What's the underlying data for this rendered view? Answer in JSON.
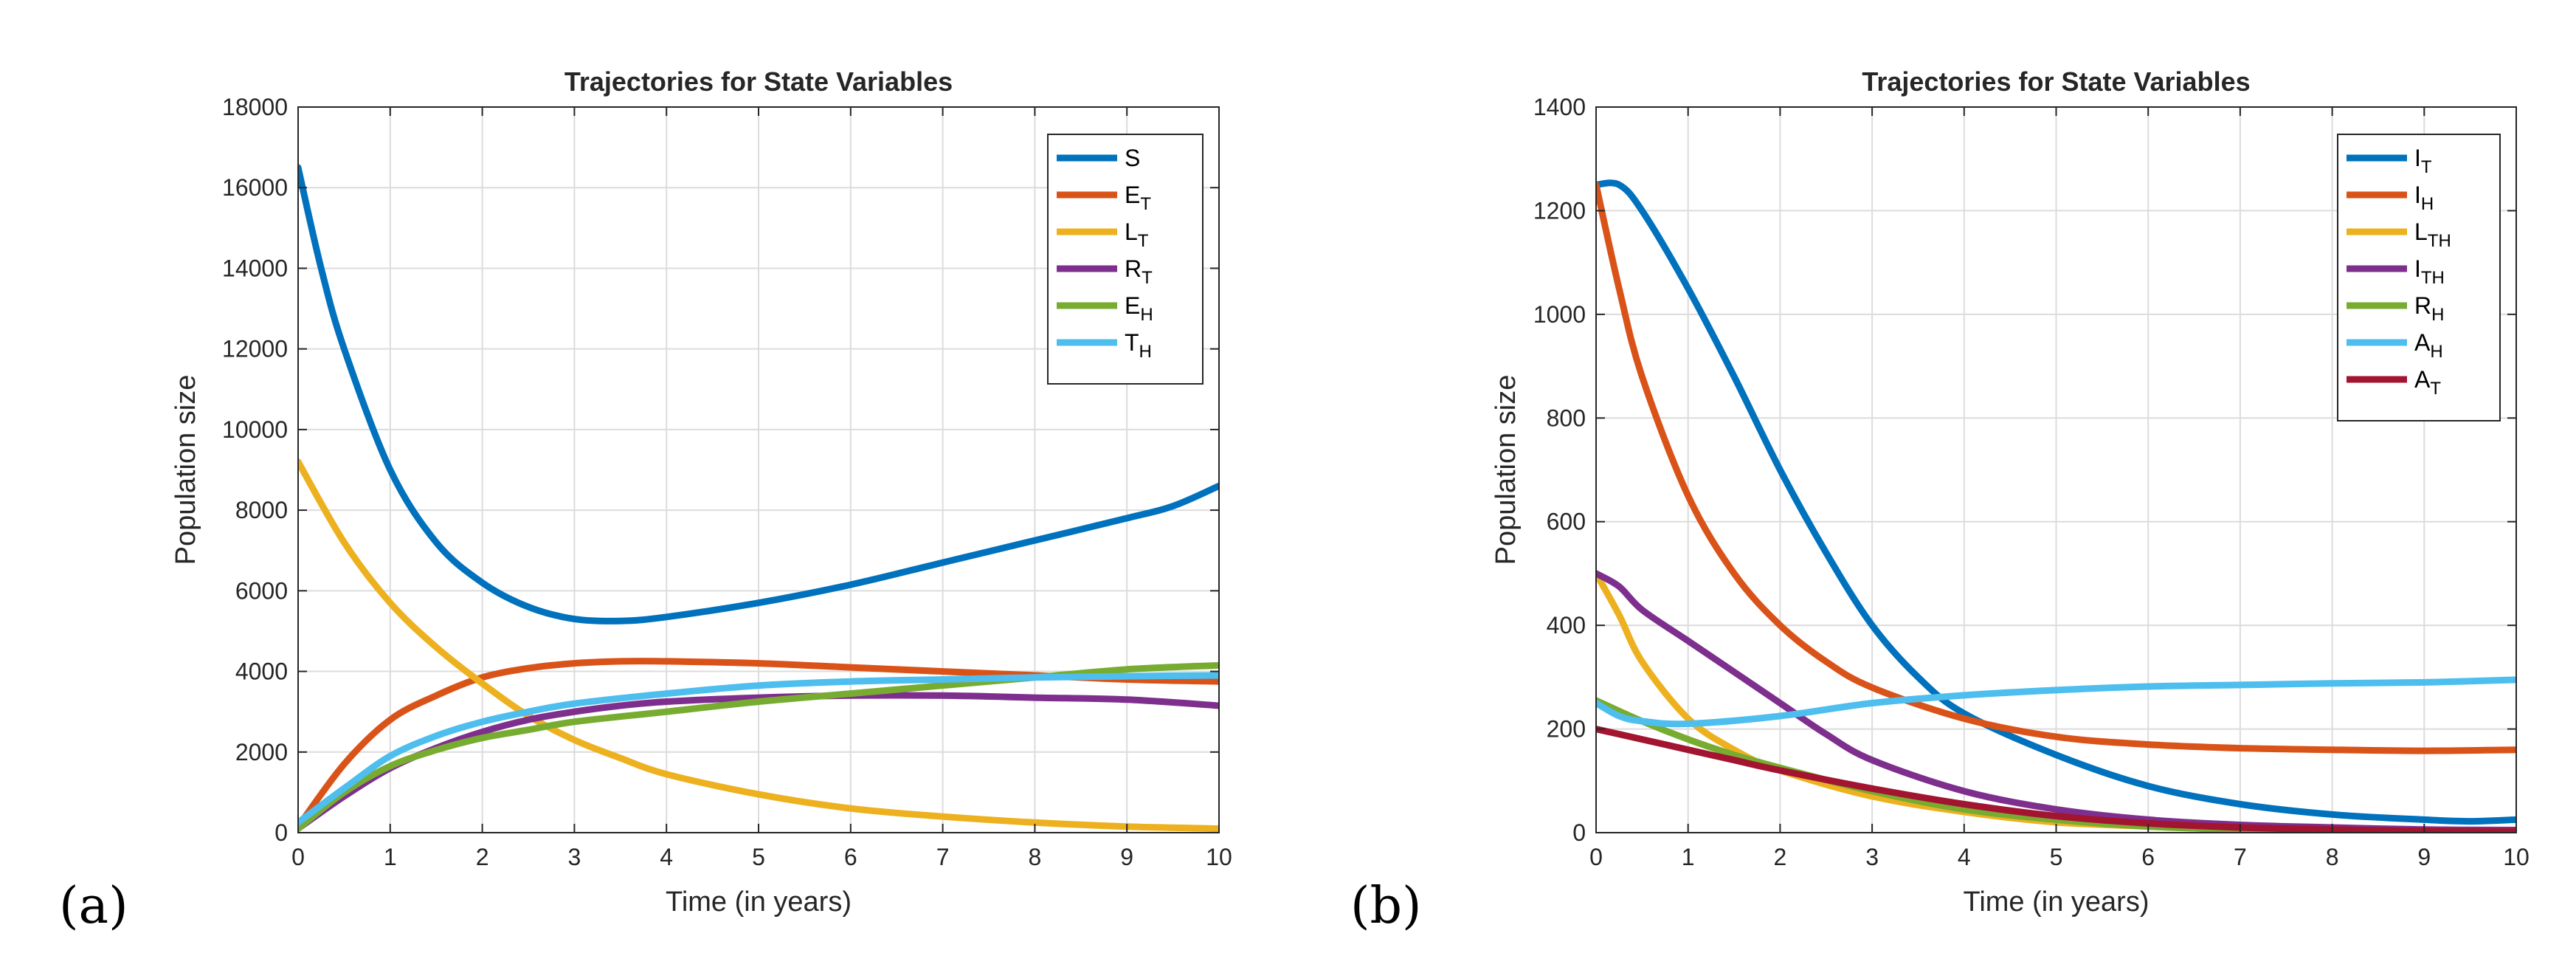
{
  "chart_data": [
    {
      "type": "line",
      "panel_label": "(a)",
      "title": "Trajectories for State Variables",
      "xlabel": "Time (in years)",
      "ylabel": "Population size",
      "xlim": [
        0,
        10
      ],
      "ylim": [
        0,
        18000
      ],
      "xticks": [
        0,
        1,
        2,
        3,
        4,
        5,
        6,
        7,
        8,
        9,
        10
      ],
      "yticks": [
        0,
        2000,
        4000,
        6000,
        8000,
        10000,
        12000,
        14000,
        16000,
        18000
      ],
      "grid": true,
      "legend_position": "top-right",
      "series": [
        {
          "name": "S",
          "label_main": "S",
          "label_sub": "",
          "color": "#0072BD",
          "x": [
            0,
            0.25,
            0.5,
            1,
            1.5,
            2,
            2.5,
            3,
            3.5,
            4,
            5,
            6,
            7,
            8,
            9,
            9.5,
            10
          ],
          "y": [
            16500,
            14000,
            12000,
            9000,
            7200,
            6200,
            5600,
            5300,
            5250,
            5350,
            5700,
            6150,
            6700,
            7250,
            7800,
            8100,
            8600
          ]
        },
        {
          "name": "E_T",
          "label_main": "E",
          "label_sub": "T",
          "color": "#D95319",
          "x": [
            0,
            0.5,
            1,
            1.5,
            2,
            2.5,
            3,
            3.5,
            4,
            5,
            6,
            7,
            8,
            9,
            10
          ],
          "y": [
            150,
            1700,
            2800,
            3400,
            3850,
            4080,
            4200,
            4250,
            4250,
            4200,
            4100,
            4000,
            3900,
            3800,
            3750
          ]
        },
        {
          "name": "L_T",
          "label_main": "L",
          "label_sub": "T",
          "color": "#EDB120",
          "x": [
            0,
            0.5,
            1,
            1.5,
            2,
            2.5,
            3,
            3.5,
            4,
            5,
            6,
            7,
            8,
            9,
            10
          ],
          "y": [
            9200,
            7200,
            5700,
            4600,
            3700,
            2900,
            2300,
            1850,
            1450,
            950,
            600,
            400,
            250,
            150,
            100
          ]
        },
        {
          "name": "R_T",
          "label_main": "R",
          "label_sub": "T",
          "color": "#7E2F8E",
          "x": [
            0,
            0.5,
            1,
            1.5,
            2,
            2.5,
            3,
            3.5,
            4,
            5,
            6,
            7,
            8,
            9,
            10
          ],
          "y": [
            100,
            900,
            1600,
            2100,
            2500,
            2800,
            3000,
            3150,
            3250,
            3350,
            3400,
            3400,
            3350,
            3300,
            3150
          ]
        },
        {
          "name": "E_H",
          "label_main": "E",
          "label_sub": "H",
          "color": "#77AC30",
          "x": [
            0,
            0.5,
            1,
            1.5,
            2,
            2.5,
            3,
            4,
            5,
            6,
            7,
            8,
            9,
            10
          ],
          "y": [
            100,
            1000,
            1650,
            2050,
            2350,
            2550,
            2750,
            3000,
            3250,
            3450,
            3650,
            3850,
            4050,
            4150
          ]
        },
        {
          "name": "T_H",
          "label_main": "T",
          "label_sub": "H",
          "color": "#4DBEEE",
          "x": [
            0,
            0.5,
            1,
            1.5,
            2,
            2.5,
            3,
            4,
            5,
            6,
            7,
            8,
            9,
            10
          ],
          "y": [
            250,
            1100,
            1900,
            2400,
            2750,
            3000,
            3200,
            3450,
            3650,
            3750,
            3800,
            3850,
            3880,
            3900
          ]
        }
      ]
    },
    {
      "type": "line",
      "panel_label": "(b)",
      "title": "Trajectories for State Variables",
      "xlabel": "Time (in years)",
      "ylabel": "Population size",
      "xlim": [
        0,
        10
      ],
      "ylim": [
        0,
        1400
      ],
      "xticks": [
        0,
        1,
        2,
        3,
        4,
        5,
        6,
        7,
        8,
        9,
        10
      ],
      "yticks": [
        0,
        200,
        400,
        600,
        800,
        1000,
        1200,
        1400
      ],
      "grid": true,
      "legend_position": "top-right",
      "series": [
        {
          "name": "I_T",
          "label_main": "I",
          "label_sub": "T",
          "color": "#0072BD",
          "x": [
            0,
            0.25,
            0.5,
            1,
            1.5,
            2,
            2.5,
            3,
            3.5,
            4,
            5,
            6,
            7,
            8,
            9,
            9.5,
            10
          ],
          "y": [
            1250,
            1250,
            1200,
            1050,
            880,
            700,
            540,
            400,
            300,
            230,
            150,
            90,
            55,
            35,
            25,
            22,
            25
          ]
        },
        {
          "name": "I_H",
          "label_main": "I",
          "label_sub": "H",
          "color": "#D95319",
          "x": [
            0,
            0.25,
            0.5,
            1,
            1.5,
            2,
            2.5,
            3,
            4,
            5,
            6,
            7,
            8,
            9,
            10
          ],
          "y": [
            1250,
            1050,
            880,
            650,
            500,
            400,
            330,
            280,
            220,
            185,
            170,
            163,
            160,
            158,
            160
          ]
        },
        {
          "name": "L_TH",
          "label_main": "L",
          "label_sub": "TH",
          "color": "#EDB120",
          "x": [
            0,
            0.25,
            0.5,
            1,
            1.5,
            2,
            3,
            4,
            5,
            6,
            7,
            8,
            9,
            10
          ],
          "y": [
            500,
            420,
            330,
            220,
            160,
            120,
            70,
            40,
            20,
            12,
            6,
            3,
            2,
            1
          ]
        },
        {
          "name": "I_TH",
          "label_main": "I",
          "label_sub": "TH",
          "color": "#7E2F8E",
          "x": [
            0,
            0.25,
            0.5,
            1,
            1.5,
            2,
            2.5,
            3,
            4,
            5,
            6,
            7,
            8,
            9,
            10
          ],
          "y": [
            500,
            475,
            430,
            370,
            310,
            250,
            190,
            140,
            80,
            45,
            25,
            15,
            10,
            6,
            5
          ]
        },
        {
          "name": "R_H",
          "label_main": "R",
          "label_sub": "H",
          "color": "#77AC30",
          "x": [
            0,
            0.5,
            1,
            1.5,
            2,
            3,
            4,
            5,
            6,
            7,
            8,
            9,
            10
          ],
          "y": [
            255,
            215,
            180,
            150,
            125,
            80,
            45,
            25,
            12,
            6,
            3,
            2,
            1
          ]
        },
        {
          "name": "A_H",
          "label_main": "A",
          "label_sub": "H",
          "color": "#4DBEEE",
          "x": [
            0,
            0.25,
            0.5,
            1,
            2,
            3,
            4,
            5,
            6,
            7,
            8,
            9,
            10
          ],
          "y": [
            250,
            225,
            215,
            210,
            225,
            250,
            265,
            275,
            282,
            285,
            288,
            290,
            295
          ]
        },
        {
          "name": "A_T",
          "label_main": "A",
          "label_sub": "T",
          "color": "#A2142F",
          "x": [
            0,
            0.5,
            1,
            1.5,
            2,
            3,
            4,
            5,
            6,
            7,
            8,
            9,
            10
          ],
          "y": [
            200,
            180,
            160,
            140,
            120,
            85,
            55,
            32,
            18,
            10,
            6,
            3,
            2
          ]
        }
      ]
    }
  ]
}
